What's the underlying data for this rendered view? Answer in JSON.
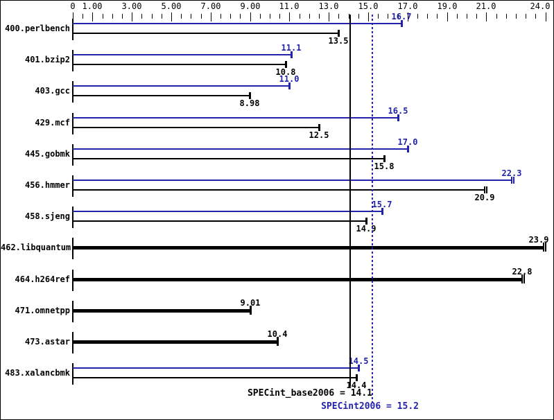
{
  "chart_data": {
    "type": "bar",
    "orientation": "horizontal",
    "colors": {
      "peak": "#2222aa",
      "base": "#000000",
      "background": "#ffffff"
    },
    "axis": {
      "xlim": [
        0,
        24
      ],
      "minor_step": 0.5,
      "tick_values": [
        0,
        1,
        3,
        5,
        7,
        9,
        11,
        13,
        15,
        17,
        19,
        21,
        24
      ],
      "tick_labels": [
        "0",
        "1.00",
        "3.00",
        "5.00",
        "7.00",
        "9.00",
        "11.0",
        "13.0",
        "15.0",
        "17.0",
        "19.0",
        "21.0",
        "24.0"
      ],
      "grid": false
    },
    "legend": {
      "position": "none"
    },
    "benchmarks": [
      {
        "name": "400.perlbench",
        "peak": {
          "value": 16.7,
          "label": "16.7"
        },
        "base": {
          "value": 13.5,
          "label": "13.5"
        }
      },
      {
        "name": "401.bzip2",
        "peak": {
          "value": 11.1,
          "label": "11.1"
        },
        "base": {
          "value": 10.8,
          "label": "10.8"
        }
      },
      {
        "name": "403.gcc",
        "peak": {
          "value": 11.0,
          "label": "11.0"
        },
        "base": {
          "value": 8.98,
          "label": "8.98"
        }
      },
      {
        "name": "429.mcf",
        "peak": {
          "value": 16.5,
          "label": "16.5"
        },
        "base": {
          "value": 12.5,
          "label": "12.5"
        }
      },
      {
        "name": "445.gobmk",
        "peak": {
          "value": 17.0,
          "label": "17.0"
        },
        "base": {
          "value": 15.8,
          "label": "15.8"
        }
      },
      {
        "name": "456.hmmer",
        "peak": {
          "value": 22.3,
          "label": "22.3"
        },
        "base": {
          "value": 20.9,
          "label": "20.9"
        },
        "cap": "double"
      },
      {
        "name": "458.sjeng",
        "peak": {
          "value": 15.7,
          "label": "15.7"
        },
        "base": {
          "value": 14.9,
          "label": "14.9"
        }
      },
      {
        "name": "462.libquantum",
        "single": true,
        "base": {
          "value": 23.9,
          "label": "23.9"
        },
        "cap": "double"
      },
      {
        "name": "464.h264ref",
        "single": true,
        "base": {
          "value": 22.8,
          "label": "22.8"
        },
        "cap": "double"
      },
      {
        "name": "471.omnetpp",
        "single": true,
        "base": {
          "value": 9.01,
          "label": "9.01"
        }
      },
      {
        "name": "473.astar",
        "single": true,
        "base": {
          "value": 10.4,
          "label": "10.4"
        }
      },
      {
        "name": "483.xalancbmk",
        "peak": {
          "value": 14.5,
          "label": "14.5"
        },
        "base": {
          "value": 14.4,
          "label": "14.4"
        }
      }
    ],
    "reference_lines": [
      {
        "id": "base-mean",
        "label": "SPECint_base2006 = 14.1",
        "value": 14.1,
        "style": "solid",
        "color": "#000000"
      },
      {
        "id": "peak-mean",
        "label": "SPECint2006 = 15.2",
        "value": 15.2,
        "style": "dotted",
        "color": "#2222aa"
      }
    ]
  }
}
